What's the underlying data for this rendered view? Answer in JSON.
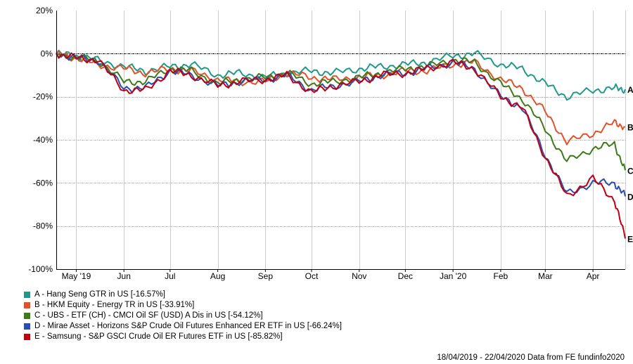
{
  "chart_data": {
    "type": "line",
    "title": "",
    "xlabel": "",
    "ylabel": "",
    "ylim": [
      -100,
      20
    ],
    "yticks": [
      "20%",
      "0%",
      "-20%",
      "-40%",
      "-60%",
      "-80%",
      "-100%"
    ],
    "xticks": [
      "May '19",
      "Jun",
      "Jul",
      "Aug",
      "Sep",
      "Oct",
      "Nov",
      "Dec",
      "Jan '20",
      "Feb",
      "Mar",
      "Apr"
    ],
    "grid": true,
    "legend_position": "bottom-left",
    "date_range": "18/04/2019 - 22/04/2020",
    "x": [
      "2019-04-18",
      "2019-05-01",
      "2019-05-15",
      "2019-06-01",
      "2019-06-15",
      "2019-07-01",
      "2019-07-15",
      "2019-08-01",
      "2019-08-15",
      "2019-09-01",
      "2019-09-15",
      "2019-10-01",
      "2019-10-15",
      "2019-11-01",
      "2019-11-15",
      "2019-12-01",
      "2019-12-15",
      "2020-01-01",
      "2020-01-15",
      "2020-02-01",
      "2020-02-15",
      "2020-03-01",
      "2020-03-15",
      "2020-04-01",
      "2020-04-15",
      "2020-04-22"
    ],
    "series": [
      {
        "label": "A",
        "name": "A - Hang Seng GTR in US [-16.57%]",
        "color": "#1f9a8a",
        "values": [
          0,
          -1,
          -3,
          -6,
          -8,
          -6,
          -5,
          -10,
          -9,
          -11,
          -9,
          -8,
          -9,
          -7,
          -6,
          -5,
          -4,
          -1,
          0,
          -5,
          -7,
          -14,
          -20,
          -17,
          -16,
          -16.57
        ]
      },
      {
        "label": "B",
        "name": "B - HKM Equity - Energy TR in US [-33.91%]",
        "color": "#e2522a",
        "values": [
          0,
          -2,
          -5,
          -7,
          -9,
          -7,
          -8,
          -12,
          -13,
          -13,
          -9,
          -11,
          -12,
          -11,
          -10,
          -8,
          -8,
          -5,
          -4,
          -12,
          -16,
          -27,
          -41,
          -37,
          -32,
          -33.91
        ]
      },
      {
        "label": "C",
        "name": "C - UBS - ETF (CH) - CMCI Oil SF (USD) A Dis in US [-54.12%]",
        "color": "#3d7a19",
        "values": [
          0,
          -2,
          -3,
          -13,
          -13,
          -7,
          -8,
          -14,
          -12,
          -11,
          -9,
          -14,
          -13,
          -11,
          -9,
          -7,
          -6,
          -3,
          -4,
          -14,
          -21,
          -35,
          -50,
          -44,
          -42,
          -54.12
        ]
      },
      {
        "label": "D",
        "name": "D - Mirae Asset - Horizons S&P Crude Oil Futures Enhanced ER ETF in US [-66.24%]",
        "color": "#2a4db0",
        "values": [
          0,
          -2,
          -3,
          -16,
          -16,
          -8,
          -10,
          -15,
          -13,
          -12,
          -10,
          -17,
          -15,
          -13,
          -10,
          -9,
          -7,
          -4,
          -7,
          -20,
          -25,
          -47,
          -65,
          -60,
          -60,
          -66.24
        ]
      },
      {
        "label": "E",
        "name": "E - Samsung - S&P GSCI Crude Oil ER Futures ETF in US [-85.82%]",
        "color": "#c00010",
        "values": [
          0,
          -2,
          -3,
          -17,
          -17,
          -8,
          -10,
          -15,
          -13,
          -12,
          -10,
          -18,
          -15,
          -13,
          -10,
          -9,
          -7,
          -4,
          -7,
          -20,
          -25,
          -48,
          -66,
          -58,
          -68,
          -85.82
        ]
      }
    ]
  },
  "legend": [
    {
      "label": "A - Hang Seng GTR in US [-16.57%]",
      "color": "#1f9a8a"
    },
    {
      "label": "B - HKM Equity - Energy TR in US [-33.91%]",
      "color": "#e2522a"
    },
    {
      "label": "C - UBS - ETF (CH) - CMCI Oil SF (USD) A Dis in US [-54.12%]",
      "color": "#3d7a19"
    },
    {
      "label": "D - Mirae Asset - Horizons S&P Crude Oil Futures Enhanced ER ETF in US [-66.24%]",
      "color": "#2a4db0"
    },
    {
      "label": "E - Samsung - S&P GSCI Crude Oil ER Futures ETF in US [-85.82%]",
      "color": "#c00010"
    }
  ],
  "footer": {
    "text": "18/04/2019 - 22/04/2020 Data from FE fundinfo2020"
  }
}
